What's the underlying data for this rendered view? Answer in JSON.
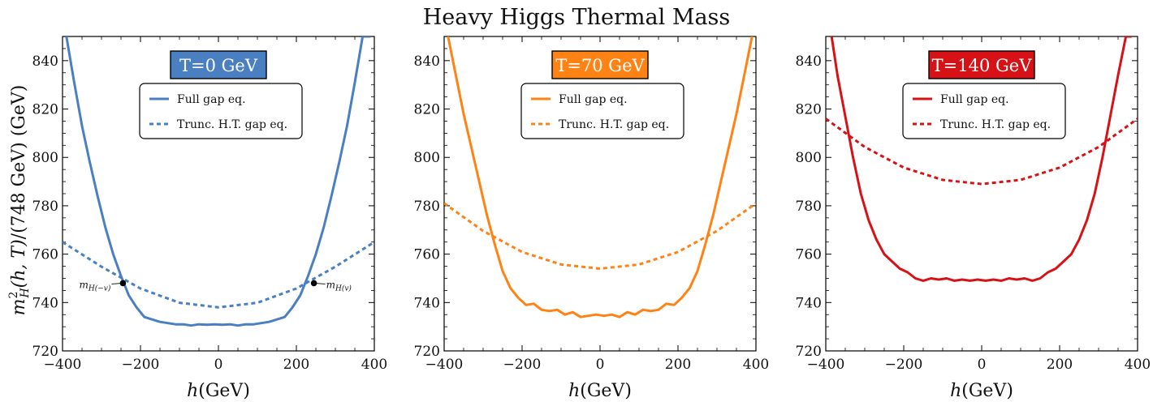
{
  "title": "Heavy Higgs Thermal Mass",
  "ylabel": "m_H^2(h,T)/(748 GeV)  (GeV)",
  "ylabel_parts": {
    "m": "m",
    "sup": "2",
    "sub": "H",
    "args": "(h, T)",
    "rest": "/(748 GeV)  (GeV)"
  },
  "xlabel_parts": {
    "var": "h",
    "unit": "(GeV)"
  },
  "chart_data": [
    {
      "type": "line",
      "badge": "T=0 GeV",
      "color": "#4a7fc1",
      "xlim": [
        -400,
        400
      ],
      "ylim": [
        720,
        850
      ],
      "x_ticks": [
        -400,
        -200,
        0,
        200,
        400
      ],
      "y_ticks": [
        720,
        740,
        760,
        780,
        800,
        820,
        840
      ],
      "x_tick_labels": [
        "−400",
        "−200",
        "0",
        "200",
        "400"
      ],
      "y_tick_labels": [
        "720",
        "740",
        "760",
        "780",
        "800",
        "820",
        "840"
      ],
      "legend": [
        "Full gap eq.",
        "Trunc. H.T. gap eq."
      ],
      "series": [
        {
          "name": "Full gap eq.",
          "style": "solid",
          "x": [
            -390,
            -370,
            -350,
            -330,
            -310,
            -290,
            -270,
            -250,
            -230,
            -210,
            -190,
            -170,
            -150,
            -130,
            -110,
            -90,
            -70,
            -50,
            -30,
            -10,
            10,
            30,
            50,
            70,
            90,
            110,
            130,
            150,
            170,
            190,
            210,
            230,
            250,
            270,
            290,
            310,
            330,
            350,
            370,
            390
          ],
          "y": [
            850,
            831,
            813,
            798,
            784,
            771,
            760,
            751,
            743,
            738,
            734,
            733,
            732,
            731.5,
            731,
            731,
            730.5,
            731,
            730.8,
            731,
            730.8,
            731,
            730.5,
            731,
            731,
            731.5,
            732,
            733,
            734,
            738,
            743,
            751,
            760,
            771,
            784,
            798,
            813,
            831,
            850,
            850
          ]
        },
        {
          "name": "Trunc. H.T. gap eq.",
          "style": "dashed",
          "x": [
            -400,
            -300,
            -200,
            -100,
            0,
            100,
            200,
            300,
            400
          ],
          "y": [
            765,
            754.8,
            745.8,
            739.9,
            738,
            739.9,
            745.8,
            754.8,
            765
          ]
        }
      ],
      "annotations": [
        {
          "label": "m_H(−v)",
          "x": -245,
          "y": 748,
          "side": "left",
          "main": "m",
          "sub": "H(−v)"
        },
        {
          "label": "m_H(v)",
          "x": 245,
          "y": 748,
          "side": "right",
          "main": "m",
          "sub": "H(v)"
        }
      ]
    },
    {
      "type": "line",
      "badge": "T=70 GeV",
      "color": "#ff8214",
      "xlim": [
        -400,
        400
      ],
      "ylim": [
        720,
        850
      ],
      "x_ticks": [
        -400,
        -200,
        0,
        200,
        400
      ],
      "y_ticks": [
        720,
        740,
        760,
        780,
        800,
        820,
        840
      ],
      "x_tick_labels": [
        "−400",
        "−200",
        "0",
        "200",
        "400"
      ],
      "y_tick_labels": [
        "720",
        "740",
        "760",
        "780",
        "800",
        "820",
        "840"
      ],
      "legend": [
        "Full gap eq.",
        "Trunc. H.T. gap eq."
      ],
      "series": [
        {
          "name": "Full gap eq.",
          "style": "solid",
          "x": [
            -390,
            -370,
            -350,
            -330,
            -310,
            -290,
            -270,
            -250,
            -230,
            -210,
            -190,
            -170,
            -150,
            -130,
            -110,
            -90,
            -70,
            -50,
            -30,
            -10,
            10,
            30,
            50,
            70,
            90,
            110,
            130,
            150,
            170,
            190,
            210,
            230,
            250,
            270,
            290,
            310,
            330,
            350,
            370,
            390
          ],
          "y": [
            850,
            834,
            818,
            804,
            790,
            776,
            764,
            753,
            746,
            742,
            739,
            739.5,
            737,
            736.5,
            737,
            735,
            736,
            734,
            734.5,
            735,
            734.5,
            735,
            734,
            736,
            735,
            737,
            736.5,
            737,
            739.5,
            739,
            742,
            746,
            753,
            764,
            776,
            790,
            804,
            818,
            834,
            850
          ]
        },
        {
          "name": "Trunc. H.T. gap eq.",
          "style": "dashed",
          "x": [
            -400,
            -300,
            -200,
            -100,
            0,
            100,
            200,
            300,
            400
          ],
          "y": [
            781,
            769.6,
            760.9,
            755.7,
            754,
            755.7,
            760.9,
            769.6,
            781
          ]
        }
      ],
      "annotations": []
    },
    {
      "type": "line",
      "badge": "T=140 GeV",
      "color": "#d71217",
      "xlim": [
        -400,
        400
      ],
      "ylim": [
        720,
        850
      ],
      "x_ticks": [
        -400,
        -200,
        0,
        200,
        400
      ],
      "y_ticks": [
        720,
        740,
        760,
        780,
        800,
        820,
        840
      ],
      "x_tick_labels": [
        "−400",
        "−200",
        "0",
        "200",
        "400"
      ],
      "y_tick_labels": [
        "720",
        "740",
        "760",
        "780",
        "800",
        "820",
        "840"
      ],
      "legend": [
        "Full gap eq.",
        "Trunc. H.T. gap eq."
      ],
      "series": [
        {
          "name": "Full gap eq.",
          "style": "solid",
          "x": [
            -385,
            -370,
            -350,
            -330,
            -310,
            -290,
            -270,
            -250,
            -230,
            -210,
            -190,
            -170,
            -150,
            -130,
            -110,
            -90,
            -70,
            -50,
            -30,
            -10,
            10,
            30,
            50,
            70,
            90,
            110,
            130,
            150,
            170,
            190,
            210,
            230,
            250,
            270,
            290,
            310,
            330,
            350,
            370,
            385
          ],
          "y": [
            850,
            834,
            817,
            800,
            785,
            774,
            766,
            760,
            757,
            754,
            752.5,
            750,
            749,
            750,
            749.5,
            750,
            749,
            749.5,
            749,
            749.5,
            749,
            749.5,
            749,
            750,
            749.5,
            750,
            749,
            750,
            752.5,
            754,
            757,
            760,
            766,
            774,
            785,
            800,
            817,
            834,
            850,
            850
          ]
        },
        {
          "name": "Trunc. H.T. gap eq.",
          "style": "dashed",
          "x": [
            -400,
            -300,
            -200,
            -100,
            0,
            100,
            200,
            300,
            400
          ],
          "y": [
            816,
            804.3,
            795.8,
            790.7,
            789,
            790.7,
            795.8,
            804.3,
            816
          ]
        }
      ],
      "annotations": []
    }
  ]
}
